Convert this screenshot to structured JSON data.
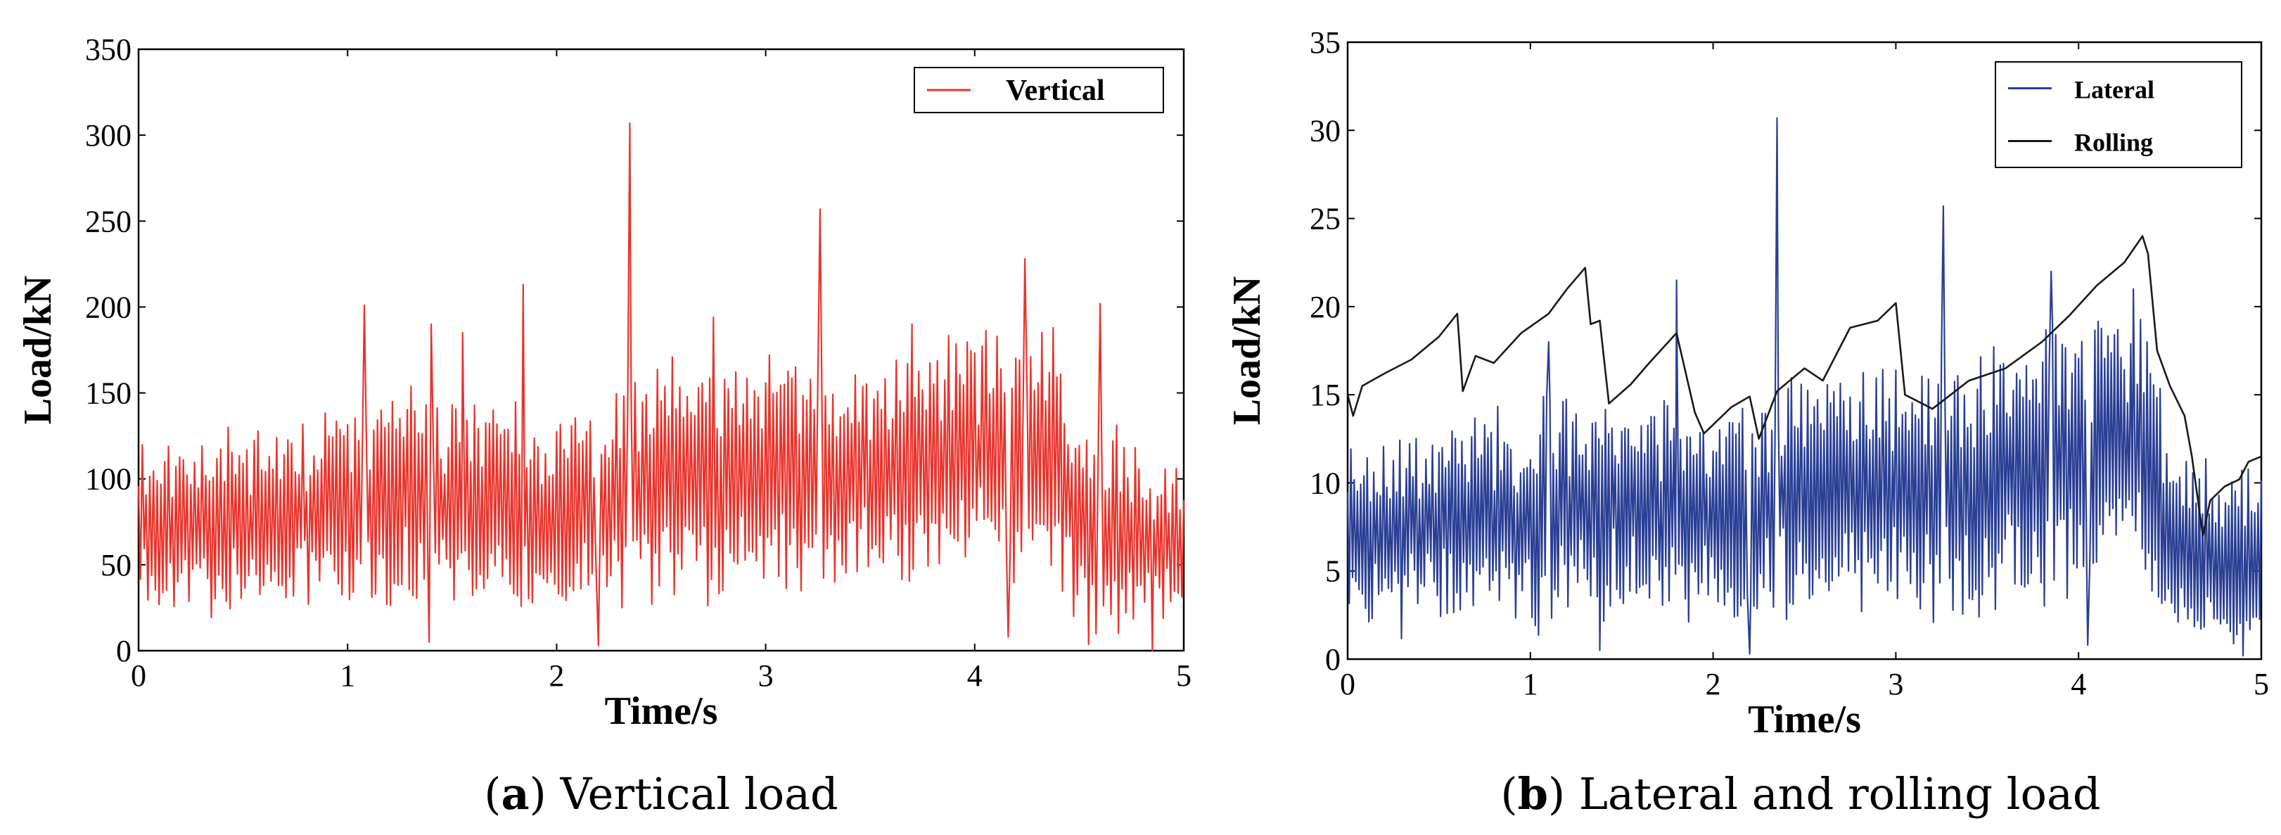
{
  "chart_data": [
    {
      "id": "a",
      "type": "line",
      "caption_letter": "a",
      "caption_text": "Vertical load",
      "xlabel": "Time/s",
      "ylabel": "Load/kN",
      "xlim": [
        0,
        5
      ],
      "ylim": [
        0,
        350
      ],
      "xticks": [
        "0",
        "1",
        "2",
        "3",
        "4",
        "5"
      ],
      "yticks": [
        "0",
        "50",
        "100",
        "150",
        "200",
        "250",
        "300",
        "350"
      ],
      "legend_position": "top-right",
      "series": [
        {
          "name": "Vertical",
          "color": "#e8342c",
          "envelope": {
            "t": [
              0,
              0.5,
              1.0,
              1.3,
              2.0,
              2.5,
              3.0,
              3.5,
              4.0,
              4.4,
              4.5,
              5.0
            ],
            "center": [
              75,
              78,
              82,
              90,
              82,
              98,
              100,
              100,
              115,
              115,
              70,
              60
            ],
            "amplitude": [
              45,
              48,
              50,
              55,
              50,
              60,
              60,
              60,
              65,
              60,
              55,
              50
            ]
          },
          "spikes": [
            {
              "t": 1.08,
              "v": 201
            },
            {
              "t": 1.39,
              "v": 5
            },
            {
              "t": 1.4,
              "v": 190
            },
            {
              "t": 1.55,
              "v": 185
            },
            {
              "t": 1.84,
              "v": 213
            },
            {
              "t": 2.2,
              "v": 3
            },
            {
              "t": 2.35,
              "v": 307
            },
            {
              "t": 2.75,
              "v": 194
            },
            {
              "t": 3.26,
              "v": 257
            },
            {
              "t": 3.7,
              "v": 190
            },
            {
              "t": 4.16,
              "v": 8
            },
            {
              "t": 4.24,
              "v": 228
            },
            {
              "t": 4.6,
              "v": 202
            },
            {
              "t": 4.85,
              "v": 0
            }
          ]
        }
      ]
    },
    {
      "id": "b",
      "type": "line",
      "caption_letter": "b",
      "caption_text": "Lateral and rolling load",
      "xlabel": "Time/s",
      "ylabel": "Load/kN",
      "xlim": [
        0,
        5
      ],
      "ylim": [
        0,
        35
      ],
      "xticks": [
        "0",
        "1",
        "2",
        "3",
        "4",
        "5"
      ],
      "yticks": [
        "0",
        "5",
        "10",
        "15",
        "20",
        "25",
        "30",
        "35"
      ],
      "legend_position": "top-right",
      "series": [
        {
          "name": "Lateral",
          "color": "#2a3f94",
          "envelope": {
            "t": [
              0,
              0.5,
              1.0,
              1.3,
              2.0,
              2.5,
              3.0,
              3.5,
              4.0,
              4.4,
              4.5,
              5.0
            ],
            "center": [
              7,
              7.5,
              8,
              9,
              8,
              9.5,
              9.5,
              10,
              11.5,
              12,
              6,
              5.5
            ],
            "amplitude": [
              5,
              5,
              5.5,
              6,
              5.5,
              6,
              6,
              6.5,
              7,
              7,
              5,
              5
            ]
          },
          "spikes": [
            {
              "t": 1.1,
              "v": 18
            },
            {
              "t": 1.38,
              "v": 0.5
            },
            {
              "t": 1.8,
              "v": 21.5
            },
            {
              "t": 2.2,
              "v": 0.3
            },
            {
              "t": 2.35,
              "v": 30.7
            },
            {
              "t": 3.26,
              "v": 25.7
            },
            {
              "t": 3.85,
              "v": 22
            },
            {
              "t": 4.05,
              "v": 0.8
            },
            {
              "t": 4.3,
              "v": 21
            },
            {
              "t": 4.9,
              "v": 0.2
            }
          ]
        },
        {
          "name": "Rolling",
          "color": "#1a1a1a",
          "points": [
            [
              0.0,
              15.0
            ],
            [
              0.03,
              13.8
            ],
            [
              0.08,
              15.5
            ],
            [
              0.2,
              16.2
            ],
            [
              0.35,
              17.0
            ],
            [
              0.5,
              18.3
            ],
            [
              0.6,
              19.6
            ],
            [
              0.63,
              15.2
            ],
            [
              0.7,
              17.2
            ],
            [
              0.8,
              16.8
            ],
            [
              0.95,
              18.5
            ],
            [
              1.1,
              19.6
            ],
            [
              1.2,
              21.0
            ],
            [
              1.3,
              22.2
            ],
            [
              1.33,
              19.0
            ],
            [
              1.38,
              19.2
            ],
            [
              1.43,
              14.5
            ],
            [
              1.55,
              15.6
            ],
            [
              1.65,
              16.8
            ],
            [
              1.8,
              18.5
            ],
            [
              1.9,
              14.0
            ],
            [
              1.95,
              12.8
            ],
            [
              2.1,
              14.3
            ],
            [
              2.2,
              14.9
            ],
            [
              2.25,
              12.5
            ],
            [
              2.35,
              15.2
            ],
            [
              2.5,
              16.5
            ],
            [
              2.6,
              15.8
            ],
            [
              2.75,
              18.8
            ],
            [
              2.9,
              19.2
            ],
            [
              3.0,
              20.2
            ],
            [
              3.05,
              15.0
            ],
            [
              3.2,
              14.2
            ],
            [
              3.4,
              15.8
            ],
            [
              3.6,
              16.5
            ],
            [
              3.8,
              18.0
            ],
            [
              3.95,
              19.5
            ],
            [
              4.1,
              21.2
            ],
            [
              4.25,
              22.5
            ],
            [
              4.35,
              24.0
            ],
            [
              4.38,
              23.0
            ],
            [
              4.43,
              17.5
            ],
            [
              4.5,
              15.5
            ],
            [
              4.58,
              13.8
            ],
            [
              4.62,
              11.5
            ],
            [
              4.68,
              7.0
            ],
            [
              4.72,
              9.0
            ],
            [
              4.8,
              9.8
            ],
            [
              4.88,
              10.2
            ],
            [
              4.93,
              11.2
            ],
            [
              5.0,
              11.5
            ]
          ]
        }
      ]
    }
  ]
}
